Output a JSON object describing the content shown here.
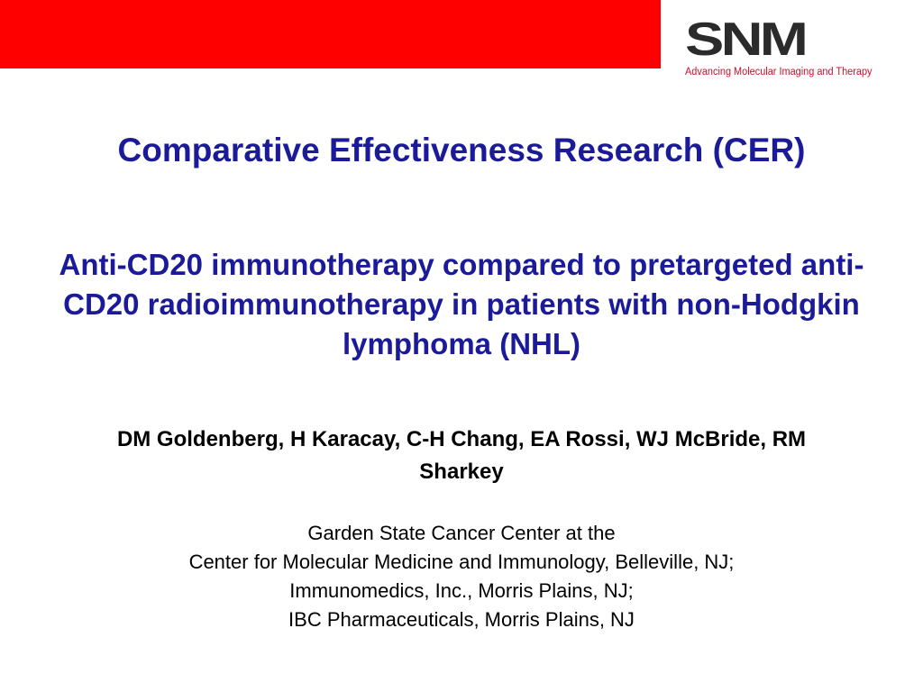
{
  "header": {
    "logo_text": "SNM",
    "logo_tagline": "Advancing Molecular Imaging and Therapy",
    "bar_color": "#ff0000",
    "logo_tagline_color": "#c8102e"
  },
  "slide": {
    "title": "Comparative Effectiveness Research (CER)",
    "subtitle": "Anti-CD20 immunotherapy compared to pretargeted anti-CD20 radioimmunotherapy in patients with non-Hodgkin lymphoma (NHL)",
    "authors": "DM Goldenberg, H Karacay, C-H Chang, EA Rossi, WJ McBride, RM Sharkey",
    "affiliations": [
      "Garden State Cancer Center at the",
      "Center for Molecular Medicine and Immunology, Belleville, NJ;",
      "Immunomedics, Inc., Morris Plains, NJ;",
      "IBC Pharmaceuticals, Morris Plains, NJ"
    ],
    "title_color": "#1b1b99"
  }
}
